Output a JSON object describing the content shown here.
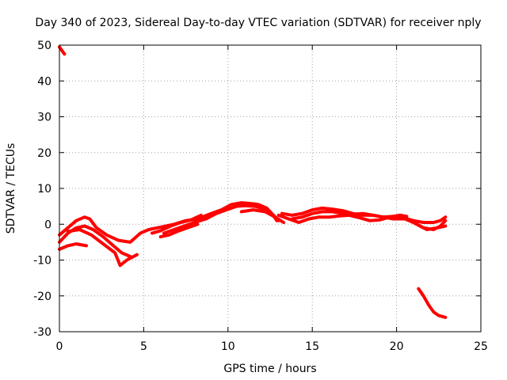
{
  "chart_data": {
    "type": "scatter",
    "title": "Day 340 of 2023, Sidereal Day-to-day VTEC variation (SDTVAR) for receiver nply",
    "xlabel": "GPS time / hours",
    "ylabel": "SDTVAR / TECUs",
    "xlim": [
      0,
      25
    ],
    "ylim": [
      -30,
      50
    ],
    "xticks": [
      "0",
      "5",
      "10",
      "15",
      "20",
      "25"
    ],
    "xtick_values": [
      0,
      5,
      10,
      15,
      20,
      25
    ],
    "yticks": [
      "-30",
      "-20",
      "-10",
      "0",
      "10",
      "20",
      "30",
      "40",
      "50"
    ],
    "ytick_values": [
      -30,
      -20,
      -10,
      0,
      10,
      20,
      30,
      40,
      50
    ],
    "grid": true,
    "color": "#ff0000",
    "series": [
      {
        "name": "early-high",
        "points": [
          [
            0.0,
            49.5
          ],
          [
            0.15,
            48.5
          ],
          [
            0.3,
            47.5
          ]
        ]
      },
      {
        "name": "arc-a",
        "points": [
          [
            0.0,
            -3
          ],
          [
            0.5,
            -1
          ],
          [
            1.0,
            1
          ],
          [
            1.5,
            2
          ],
          [
            1.8,
            1.5
          ],
          [
            2.2,
            -1
          ],
          [
            2.8,
            -3
          ],
          [
            3.5,
            -4.5
          ],
          [
            4.2,
            -5
          ],
          [
            4.8,
            -2.5
          ],
          [
            5.3,
            -1.5
          ],
          [
            6.0,
            -0.8
          ],
          [
            6.8,
            0
          ],
          [
            7.5,
            1
          ],
          [
            8.2,
            1.5
          ],
          [
            9.0,
            3
          ],
          [
            9.6,
            4
          ],
          [
            10.2,
            5.5
          ],
          [
            10.8,
            6
          ],
          [
            11.3,
            5.8
          ],
          [
            11.8,
            5.5
          ],
          [
            12.3,
            4.5
          ],
          [
            12.6,
            3
          ],
          [
            12.9,
            1
          ]
        ]
      },
      {
        "name": "arc-b",
        "points": [
          [
            0.0,
            -5
          ],
          [
            0.5,
            -2.5
          ],
          [
            1.0,
            -1
          ],
          [
            1.5,
            -0.5
          ],
          [
            2.0,
            -1.5
          ],
          [
            2.6,
            -3.5
          ],
          [
            3.2,
            -6
          ],
          [
            3.7,
            -8
          ],
          [
            4.2,
            -9
          ]
        ]
      },
      {
        "name": "arc-c",
        "points": [
          [
            0.0,
            -7
          ],
          [
            0.5,
            -6
          ],
          [
            1.0,
            -5.5
          ],
          [
            1.6,
            -6
          ]
        ]
      },
      {
        "name": "arc-d",
        "points": [
          [
            0.5,
            -2
          ],
          [
            1.2,
            -1.5
          ],
          [
            1.9,
            -3
          ],
          [
            2.6,
            -5.5
          ],
          [
            3.3,
            -8
          ],
          [
            3.6,
            -11.5
          ],
          [
            4.0,
            -10
          ],
          [
            4.6,
            -8.5
          ]
        ]
      },
      {
        "name": "arc-e",
        "points": [
          [
            6.2,
            -2.5
          ],
          [
            6.8,
            -1.5
          ],
          [
            7.4,
            -0.5
          ],
          [
            8.0,
            0.5
          ],
          [
            8.7,
            1.5
          ],
          [
            9.3,
            3
          ],
          [
            9.9,
            4
          ],
          [
            10.5,
            5
          ],
          [
            11.0,
            5.2
          ],
          [
            11.6,
            5
          ],
          [
            12.2,
            4.2
          ],
          [
            12.7,
            2.5
          ],
          [
            13.0,
            1
          ]
        ]
      },
      {
        "name": "arc-f",
        "points": [
          [
            5.5,
            -2.5
          ],
          [
            6.0,
            -1.8
          ],
          [
            6.6,
            -0.5
          ],
          [
            7.2,
            0.5
          ],
          [
            7.8,
            1.2
          ],
          [
            8.4,
            2.5
          ]
        ]
      },
      {
        "name": "arc-g",
        "points": [
          [
            6.0,
            -3.5
          ],
          [
            6.5,
            -3
          ],
          [
            7.0,
            -2
          ],
          [
            7.6,
            -1
          ],
          [
            8.2,
            0
          ]
        ]
      },
      {
        "name": "arc-h",
        "points": [
          [
            10.8,
            3.5
          ],
          [
            11.5,
            4
          ],
          [
            12.2,
            3.5
          ],
          [
            12.8,
            2
          ],
          [
            13.3,
            0.5
          ]
        ]
      },
      {
        "name": "arc-i",
        "points": [
          [
            13.0,
            2.5
          ],
          [
            13.6,
            1.5
          ],
          [
            14.2,
            0.5
          ],
          [
            14.8,
            1.5
          ],
          [
            15.4,
            2
          ],
          [
            16.0,
            2
          ],
          [
            16.6,
            2.3
          ],
          [
            17.2,
            2.5
          ],
          [
            17.8,
            1.8
          ],
          [
            18.4,
            1
          ],
          [
            19.0,
            1.2
          ],
          [
            19.6,
            2
          ],
          [
            20.2,
            2.5
          ],
          [
            20.6,
            2.2
          ]
        ]
      },
      {
        "name": "arc-j",
        "points": [
          [
            13.2,
            3
          ],
          [
            13.8,
            2.5
          ],
          [
            14.4,
            3
          ],
          [
            15.0,
            4
          ],
          [
            15.6,
            4.5
          ],
          [
            16.2,
            4.2
          ],
          [
            16.8,
            3.8
          ],
          [
            17.4,
            3
          ],
          [
            18.0,
            2.5
          ],
          [
            18.6,
            2.5
          ],
          [
            19.2,
            2
          ],
          [
            19.8,
            1.5
          ],
          [
            20.5,
            1.5
          ],
          [
            21.0,
            0.5
          ],
          [
            21.6,
            -1
          ],
          [
            22.2,
            -1.5
          ],
          [
            22.6,
            -0.5
          ],
          [
            22.9,
            1
          ]
        ]
      },
      {
        "name": "arc-k",
        "points": [
          [
            13.8,
            1.5
          ],
          [
            14.4,
            2
          ],
          [
            15.0,
            3
          ],
          [
            15.6,
            3.5
          ],
          [
            16.2,
            3.5
          ],
          [
            16.8,
            3
          ],
          [
            17.4,
            2.8
          ],
          [
            18.0,
            3
          ],
          [
            18.6,
            2.5
          ],
          [
            19.2,
            2
          ],
          [
            19.8,
            2.2
          ],
          [
            20.4,
            1.8
          ],
          [
            21.0,
            1
          ],
          [
            21.6,
            0.5
          ],
          [
            22.2,
            0.5
          ],
          [
            22.6,
            1
          ],
          [
            22.9,
            2
          ]
        ]
      },
      {
        "name": "arc-l",
        "points": [
          [
            20.6,
            1.5
          ],
          [
            21.2,
            0
          ],
          [
            21.8,
            -1.5
          ],
          [
            22.4,
            -1
          ],
          [
            22.9,
            -0.5
          ]
        ]
      },
      {
        "name": "late-drop",
        "points": [
          [
            21.3,
            -18
          ],
          [
            21.6,
            -20
          ],
          [
            21.9,
            -22.5
          ],
          [
            22.2,
            -24.5
          ],
          [
            22.5,
            -25.5
          ],
          [
            22.9,
            -26
          ]
        ]
      }
    ]
  }
}
